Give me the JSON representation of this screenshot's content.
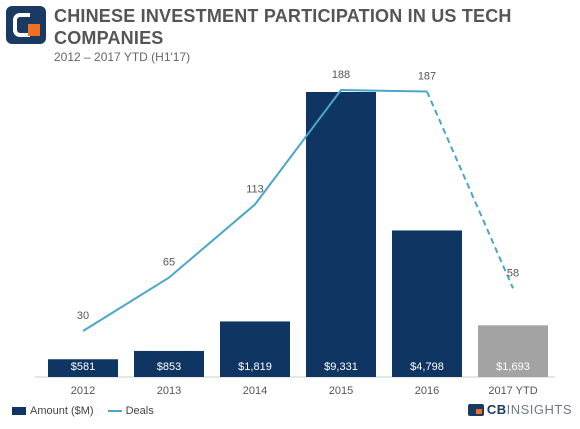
{
  "header": {
    "title": "CHINESE INVESTMENT PARTICIPATION IN US TECH COMPANIES",
    "subtitle": "2012 – 2017 YTD (H1'17)"
  },
  "colors": {
    "bar": "#0f3562",
    "bar_partial": "#a3a3a3",
    "line": "#4ba6c9",
    "logo_dark": "#1b3a63",
    "logo_accent": "#f26f21"
  },
  "chart_data": {
    "type": "bar",
    "categories": [
      "2012",
      "2013",
      "2014",
      "2015",
      "2016",
      "2017 YTD"
    ],
    "series": [
      {
        "name": "Amount ($M)",
        "type": "bar",
        "values": [
          581,
          853,
          1819,
          9331,
          4798,
          1693
        ],
        "labels": [
          "$581",
          "$853",
          "$1,819",
          "$9,331",
          "$4,798",
          "$1,693"
        ]
      },
      {
        "name": "Deals",
        "type": "line",
        "values": [
          30,
          65,
          113,
          188,
          187,
          58
        ],
        "labels": [
          "30",
          "65",
          "113",
          "188",
          "187",
          "58"
        ],
        "last_segment_dashed": true
      }
    ],
    "partial_period_category": "2017 YTD",
    "title": "CHINESE INVESTMENT PARTICIPATION IN US TECH COMPANIES",
    "subtitle": "2012 – 2017 YTD (H1'17)",
    "legend_position": "bottom-left",
    "grid": false
  },
  "legend": {
    "bar_label": "Amount ($M)",
    "line_label": "Deals"
  },
  "brand": {
    "prefix": "CB",
    "suffix": "INSIGHTS"
  }
}
